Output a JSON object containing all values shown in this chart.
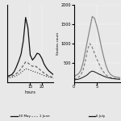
{
  "left": {
    "xlabel": "hours",
    "xlim": [
      5,
      25
    ],
    "xticks": [
      15,
      20
    ],
    "ylim": [
      0,
      800
    ],
    "yticks": [],
    "line1": {
      "x": [
        5,
        6,
        7,
        8,
        9,
        10,
        11,
        12,
        13,
        14,
        15,
        16,
        17,
        18,
        19,
        20,
        21,
        22,
        23,
        24,
        25
      ],
      "y": [
        60,
        70,
        80,
        110,
        160,
        220,
        290,
        430,
        670,
        560,
        280,
        230,
        260,
        300,
        290,
        250,
        190,
        150,
        120,
        100,
        80
      ],
      "style": "solid",
      "color": "#111111",
      "lw": 0.9
    },
    "line2": {
      "x": [
        5,
        6,
        7,
        8,
        9,
        10,
        11,
        12,
        13,
        14,
        15,
        16,
        17,
        18,
        19,
        20,
        21,
        22,
        23,
        24,
        25
      ],
      "y": [
        55,
        60,
        65,
        75,
        90,
        110,
        140,
        175,
        210,
        200,
        180,
        165,
        170,
        155,
        135,
        115,
        95,
        80,
        65,
        58,
        50
      ],
      "style": "dashed",
      "color": "#555555",
      "lw": 0.8,
      "dashes": [
        3,
        2
      ]
    },
    "line3": {
      "x": [
        5,
        6,
        7,
        8,
        9,
        10,
        11,
        12,
        13,
        14,
        15,
        16,
        17,
        18,
        19,
        20,
        21,
        22,
        23,
        24,
        25
      ],
      "y": [
        45,
        48,
        52,
        58,
        68,
        82,
        100,
        120,
        140,
        135,
        125,
        115,
        108,
        100,
        90,
        80,
        70,
        62,
        55,
        50,
        44
      ],
      "style": "dotted",
      "color": "#333333",
      "lw": 0.8
    }
  },
  "right": {
    "xlim": [
      0,
      10
    ],
    "xticks": [
      0,
      5
    ],
    "ylim": [
      0,
      2000
    ],
    "yticks": [
      500,
      1000,
      1500,
      2000
    ],
    "ylabel": "Strokes count",
    "line1": {
      "x": [
        0,
        0.5,
        1,
        1.5,
        2,
        2.5,
        3,
        3.5,
        4,
        4.5,
        5,
        5.5,
        6,
        6.5,
        7,
        7.5,
        8,
        8.5,
        9,
        9.5,
        10
      ],
      "y": [
        150,
        180,
        220,
        300,
        500,
        800,
        1100,
        1400,
        1700,
        1650,
        1450,
        1200,
        900,
        650,
        430,
        280,
        200,
        160,
        140,
        130,
        120
      ],
      "style": "solid",
      "color": "#888888",
      "lw": 0.9
    },
    "line2": {
      "x": [
        0,
        0.5,
        1,
        1.5,
        2,
        2.5,
        3,
        3.5,
        4,
        4.5,
        5,
        5.5,
        6,
        6.5,
        7,
        7.5,
        8,
        8.5,
        9,
        9.5,
        10
      ],
      "y": [
        80,
        100,
        130,
        180,
        310,
        550,
        850,
        1000,
        900,
        750,
        600,
        470,
        350,
        260,
        190,
        150,
        120,
        110,
        100,
        90,
        85
      ],
      "style": "dashed",
      "color": "#777777",
      "lw": 0.8,
      "dashes": [
        3,
        2
      ]
    },
    "line3": {
      "x": [
        0,
        0.5,
        1,
        1.5,
        2,
        2.5,
        3,
        3.5,
        4,
        4.5,
        5,
        5.5,
        6,
        6.5,
        7,
        7.5,
        8,
        8.5,
        9,
        9.5,
        10
      ],
      "y": [
        60,
        70,
        80,
        100,
        130,
        160,
        200,
        260,
        290,
        270,
        240,
        210,
        185,
        158,
        135,
        118,
        105,
        95,
        88,
        82,
        78
      ],
      "style": "solid",
      "color": "#111111",
      "lw": 0.7
    }
  },
  "background": "#e8e8e8",
  "legend_left_labels": [
    "30 May",
    "1 June"
  ],
  "legend_right_labels": [
    "6 July"
  ]
}
